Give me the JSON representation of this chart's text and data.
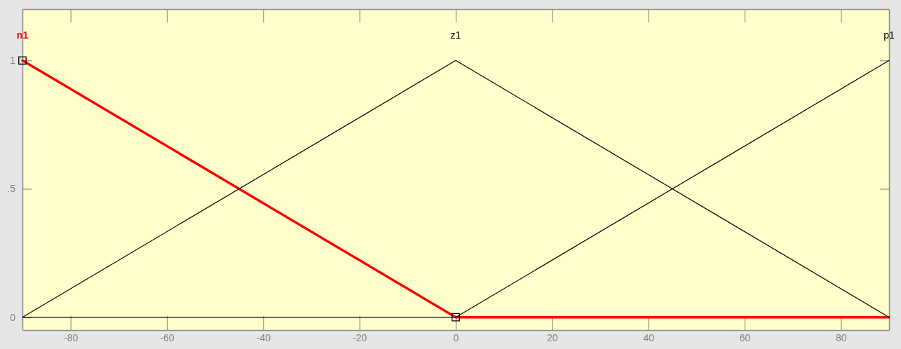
{
  "chart_data": {
    "type": "line",
    "xlim": [
      -90,
      90
    ],
    "xticks": [
      -80,
      -60,
      -40,
      -20,
      0,
      20,
      40,
      60,
      80
    ],
    "ylim": [
      -0.05,
      1.2
    ],
    "yticks": [
      {
        "value": 0,
        "label": "0"
      },
      {
        "value": 0.5,
        "label": ".5"
      },
      {
        "value": 1,
        "label": "1"
      }
    ],
    "series": [
      {
        "name": "n1",
        "color": "#ff0000",
        "x": [
          -90,
          0,
          90
        ],
        "values": [
          1,
          0,
          0
        ]
      },
      {
        "name": "z1",
        "color": "#000000",
        "x": [
          -90,
          0,
          90
        ],
        "values": [
          0,
          1,
          0
        ]
      },
      {
        "name": "p1",
        "color": "#000000",
        "x": [
          -90,
          0,
          90
        ],
        "values": [
          0,
          0,
          1
        ]
      },
      {
        "type": "scatter",
        "marker": "square",
        "color": "#000000",
        "x": [
          -90,
          0
        ],
        "values": [
          1,
          0
        ]
      }
    ]
  }
}
